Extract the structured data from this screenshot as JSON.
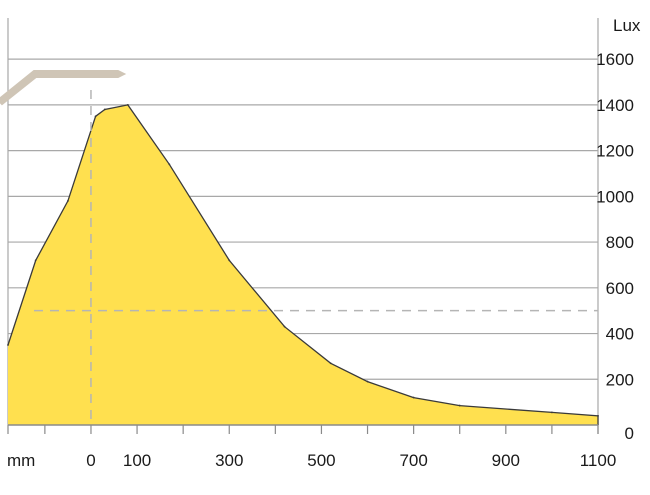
{
  "chart_data": {
    "type": "area",
    "x_unit": "mm",
    "y_unit": "Lux",
    "x_ticks": [
      0,
      100,
      300,
      500,
      700,
      900,
      1100
    ],
    "y_ticks": [
      0,
      200,
      400,
      600,
      800,
      1000,
      1200,
      1400,
      1600
    ],
    "xlim": [
      -180,
      1100
    ],
    "ylim": [
      0,
      1780
    ],
    "grid": true,
    "reference_lines": {
      "x": 0,
      "y": 500
    },
    "x": [
      -180,
      -120,
      -50,
      10,
      30,
      80,
      170,
      300,
      420,
      520,
      600,
      700,
      800,
      1000,
      1100
    ],
    "y": [
      350,
      720,
      980,
      1350,
      1380,
      1400,
      1140,
      720,
      430,
      270,
      190,
      120,
      85,
      55,
      40
    ],
    "fill_color": "#ffe04f",
    "line_color": "#3a3a3a",
    "grid_color": "#a8a8a8",
    "fixture_color": "#cfc5b6"
  }
}
